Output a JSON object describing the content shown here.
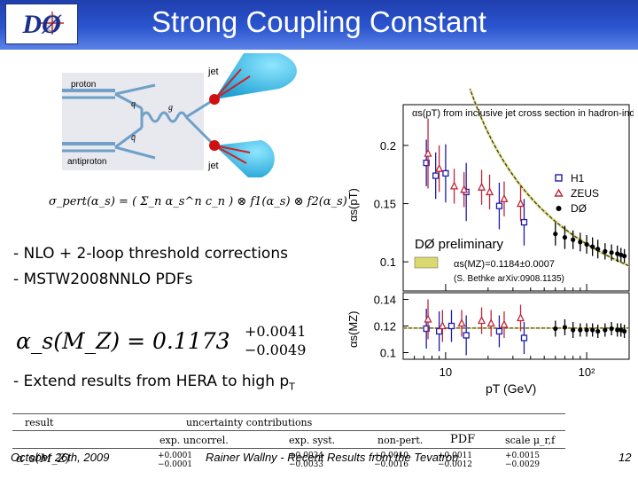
{
  "header": {
    "title": "Strong Coupling Constant",
    "logo_text": "DØ"
  },
  "feynman": {
    "jet_top": "jet",
    "jet_bottom": "jet",
    "proton": "proton",
    "antiproton": "antiproton",
    "q": "q",
    "qbar": "q̄",
    "g": "g"
  },
  "formulas": {
    "sigma_pert": "σ_pert(α_s) = ( Σ_n α_s^n c_n ) ⊗ f1(α_s) ⊗ f2(α_s)",
    "alpha_main": "α_s(M_Z) = 0.1173",
    "alpha_up": "+0.0041",
    "alpha_down": "−0.0049"
  },
  "bullets": {
    "b1": "- NLO + 2-loop threshold corrections",
    "b2": "- MSTW2008NNLO PDFs",
    "b3_prefix": "- Extend results from HERA to high p",
    "b3_sub": "T"
  },
  "table": {
    "headers": [
      "result",
      "uncertainty contributions",
      "exp. uncorrel.",
      "exp. syst.",
      "non-pert.",
      "PDF",
      "scale μ_r,f"
    ],
    "row_label": "α_s(M_Z)",
    "values_up": [
      "+0.0001",
      "+0.0034",
      "+0.0010",
      "+0.0011",
      "+0.0015"
    ],
    "values_down": [
      "−0.0001",
      "−0.0033",
      "−0.0016",
      "−0.0012",
      "−0.0029"
    ]
  },
  "chart_data": {
    "type": "scatter",
    "title": "αs(pT) from inclusive jet cross section in hadron-induced processes",
    "ylabel_top": "αs(pT)",
    "ylabel_bottom": "αs(MZ)",
    "xlabel": "pT  (GeV)",
    "x_ticks": [
      "10",
      "10²"
    ],
    "xlim": [
      5,
      200
    ],
    "top": {
      "ylim": [
        0.075,
        0.235
      ],
      "y_ticks": [
        "0.2",
        "0.15",
        "0.1"
      ],
      "series": [
        {
          "name": "H1",
          "marker": "open-square",
          "color": "#1c1ca8",
          "points": [
            [
              7.3,
              0.185,
              0.02
            ],
            [
              8.5,
              0.174,
              0.02
            ],
            [
              10,
              0.176,
              0.025
            ],
            [
              14,
              0.16,
              0.025
            ],
            [
              24,
              0.148,
              0.02
            ],
            [
              36,
              0.134,
              0.02
            ]
          ]
        },
        {
          "name": "ZEUS",
          "marker": "open-triangle",
          "color": "#c0253a",
          "points": [
            [
              7.5,
              0.193,
              0.03
            ],
            [
              9,
              0.18,
              0.02
            ],
            [
              11.5,
              0.165,
              0.015
            ],
            [
              13.5,
              0.162,
              0.015
            ],
            [
              18,
              0.164,
              0.015
            ],
            [
              20.5,
              0.16,
              0.015
            ],
            [
              26,
              0.154,
              0.015
            ],
            [
              34,
              0.15,
              0.015
            ]
          ]
        },
        {
          "name": "DØ",
          "marker": "filled-circle",
          "color": "#000000",
          "points": [
            [
              60,
              0.124,
              0.01
            ],
            [
              70,
              0.121,
              0.01
            ],
            [
              80,
              0.119,
              0.008
            ],
            [
              90,
              0.117,
              0.008
            ],
            [
              100,
              0.115,
              0.008
            ],
            [
              110,
              0.113,
              0.008
            ],
            [
              120,
              0.111,
              0.008
            ],
            [
              135,
              0.109,
              0.007
            ],
            [
              150,
              0.108,
              0.007
            ],
            [
              165,
              0.107,
              0.007
            ],
            [
              175,
              0.106,
              0.006
            ],
            [
              185,
              0.105,
              0.006
            ]
          ]
        }
      ],
      "band_label": "αs(MZ)=0.1184±0.0007",
      "band_note": "(S. Bethke arXiv:0908.1135)",
      "watermark": "DØ preliminary"
    },
    "bottom": {
      "ylim": [
        0.095,
        0.145
      ],
      "y_ticks": [
        "0.14",
        "0.12",
        "0.1"
      ],
      "series": [
        {
          "name": "H1",
          "marker": "open-square",
          "color": "#1c1ca8",
          "points": [
            [
              7.3,
              0.118,
              0.015
            ],
            [
              9,
              0.116,
              0.015
            ],
            [
              11,
              0.12,
              0.012
            ],
            [
              14,
              0.113,
              0.015
            ],
            [
              24,
              0.116,
              0.012
            ],
            [
              36,
              0.111,
              0.012
            ]
          ]
        },
        {
          "name": "ZEUS",
          "marker": "open-triangle",
          "color": "#c0253a",
          "points": [
            [
              7.5,
              0.125,
              0.015
            ],
            [
              9.5,
              0.12,
              0.012
            ],
            [
              13,
              0.122,
              0.01
            ],
            [
              18,
              0.124,
              0.01
            ],
            [
              21,
              0.122,
              0.01
            ],
            [
              26,
              0.121,
              0.01
            ],
            [
              34,
              0.126,
              0.01
            ]
          ]
        },
        {
          "name": "DØ",
          "marker": "filled-circle",
          "color": "#000000",
          "points": [
            [
              60,
              0.118,
              0.006
            ],
            [
              70,
              0.119,
              0.006
            ],
            [
              80,
              0.117,
              0.006
            ],
            [
              90,
              0.117,
              0.005
            ],
            [
              100,
              0.117,
              0.005
            ],
            [
              110,
              0.117,
              0.005
            ],
            [
              120,
              0.116,
              0.005
            ],
            [
              135,
              0.117,
              0.005
            ],
            [
              150,
              0.118,
              0.005
            ],
            [
              165,
              0.117,
              0.005
            ],
            [
              175,
              0.117,
              0.005
            ],
            [
              185,
              0.116,
              0.005
            ]
          ]
        }
      ]
    }
  },
  "footer": {
    "date": "October 26th, 2009",
    "author": "Rainer Wallny - Recent Results from the Tevatron",
    "page": "12"
  }
}
